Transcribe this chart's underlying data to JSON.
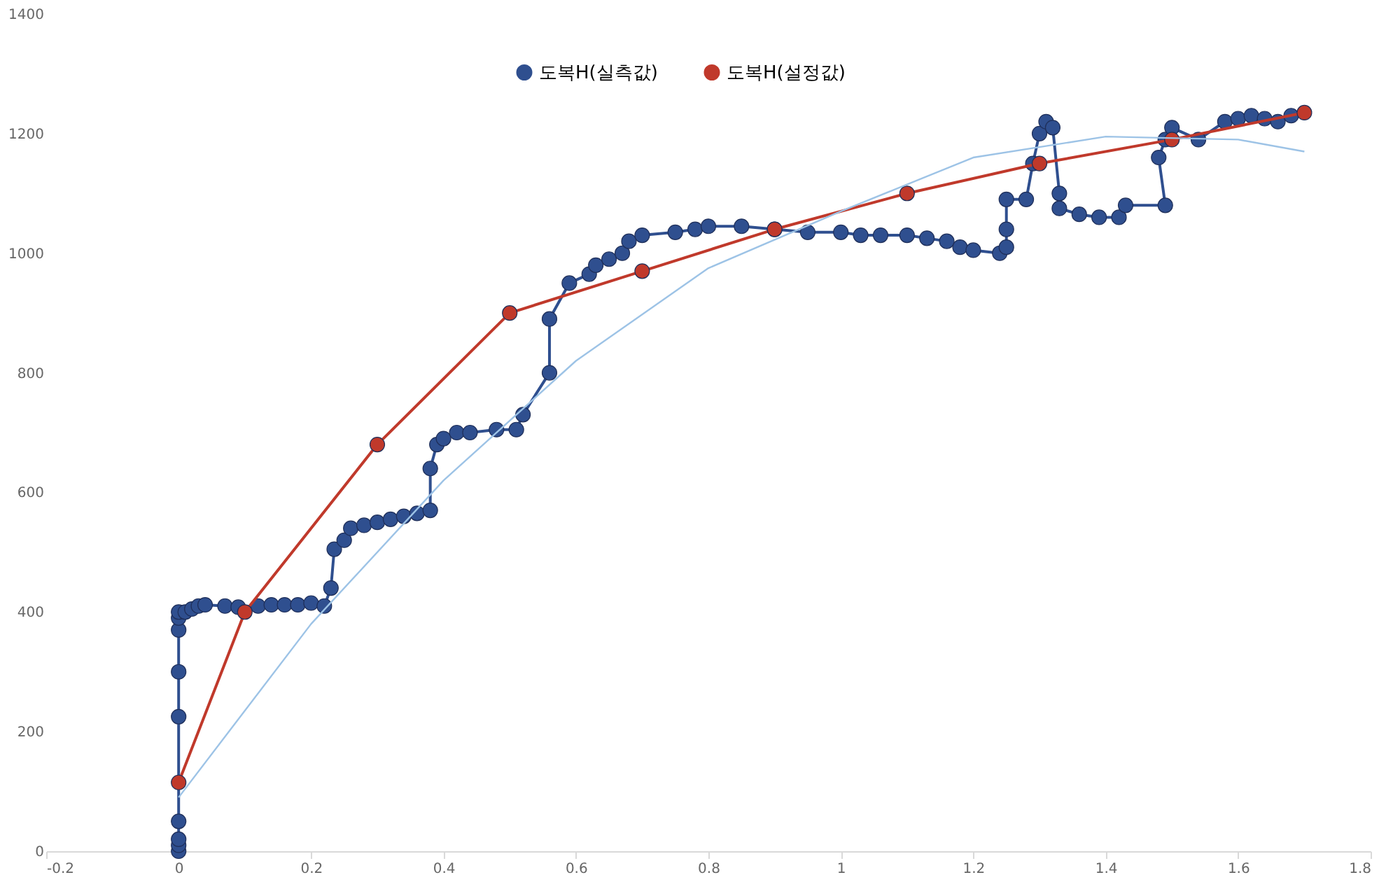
{
  "chart_data": {
    "type": "line",
    "xlim": [
      -0.2,
      1.8
    ],
    "xticks": [
      -0.2,
      0,
      0.2,
      0.4,
      0.6,
      0.8,
      1,
      1.2,
      1.4,
      1.6,
      1.8
    ],
    "ylim": [
      0,
      1400
    ],
    "yticks": [
      0,
      200,
      400,
      600,
      800,
      1000,
      1200,
      1400
    ],
    "grid": false,
    "legend": "top",
    "marker": "circle",
    "line_style": "solid",
    "series": [
      {
        "name": "도복H(실측값)",
        "color": "#2f4f8f",
        "x": [
          0,
          0,
          0,
          0,
          0,
          0,
          0,
          0,
          0,
          0.01,
          0.02,
          0.03,
          0.04,
          0.07,
          0.09,
          0.12,
          0.14,
          0.16,
          0.18,
          0.2,
          0.22,
          0.23,
          0.235,
          0.25,
          0.26,
          0.28,
          0.3,
          0.32,
          0.34,
          0.36,
          0.38,
          0.38,
          0.39,
          0.4,
          0.42,
          0.44,
          0.48,
          0.51,
          0.52,
          0.56,
          0.56,
          0.59,
          0.62,
          0.63,
          0.65,
          0.67,
          0.68,
          0.7,
          0.75,
          0.78,
          0.8,
          0.85,
          0.9,
          0.95,
          1.0,
          1.03,
          1.06,
          1.1,
          1.13,
          1.16,
          1.18,
          1.2,
          1.24,
          1.25,
          1.25,
          1.25,
          1.28,
          1.29,
          1.3,
          1.31,
          1.32,
          1.33,
          1.33,
          1.36,
          1.39,
          1.42,
          1.43,
          1.49,
          1.48,
          1.49,
          1.5,
          1.54,
          1.58,
          1.6,
          1.62,
          1.64,
          1.66,
          1.68
        ],
        "values": [
          0,
          10,
          20,
          50,
          225,
          300,
          370,
          390,
          400,
          400,
          405,
          410,
          412,
          410,
          408,
          410,
          412,
          412,
          412,
          415,
          410,
          440,
          505,
          520,
          540,
          545,
          550,
          555,
          560,
          565,
          570,
          640,
          680,
          690,
          700,
          700,
          705,
          705,
          730,
          800,
          890,
          950,
          965,
          980,
          990,
          1000,
          1020,
          1030,
          1035,
          1040,
          1045,
          1045,
          1040,
          1035,
          1035,
          1030,
          1030,
          1030,
          1025,
          1020,
          1010,
          1005,
          1000,
          1010,
          1040,
          1090,
          1090,
          1150,
          1200,
          1220,
          1210,
          1100,
          1075,
          1065,
          1060,
          1060,
          1080,
          1080,
          1160,
          1190,
          1210,
          1190,
          1220,
          1225,
          1230,
          1225,
          1220,
          1230
        ]
      },
      {
        "name": "도복H(설정값)",
        "color": "#c0392b",
        "x": [
          0,
          0.1,
          0.3,
          0.5,
          0.7,
          0.9,
          1.1,
          1.3,
          1.5,
          1.7
        ],
        "values": [
          115,
          400,
          680,
          900,
          970,
          1040,
          1100,
          1150,
          1190,
          1235
        ]
      },
      {
        "type": "line",
        "marker": "none",
        "color": "#9dc3e6",
        "x": [
          0,
          0.2,
          0.4,
          0.6,
          0.8,
          1.0,
          1.2,
          1.4,
          1.6,
          1.7
        ],
        "values": [
          90,
          380,
          620,
          820,
          975,
          1070,
          1160,
          1195,
          1190,
          1170
        ]
      }
    ]
  }
}
